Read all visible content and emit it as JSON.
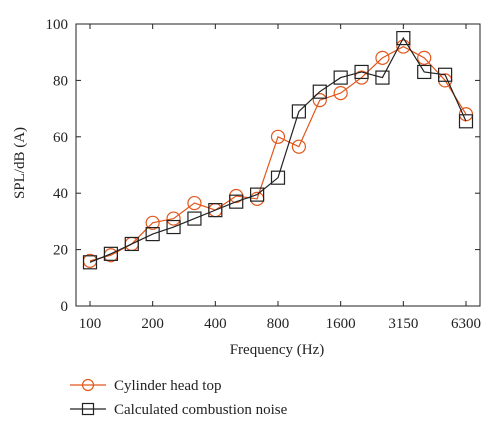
{
  "chart_data": {
    "type": "line",
    "xlabel": "Frequency (Hz)",
    "ylabel": "SPL/dB (A)",
    "ylim": [
      0,
      100
    ],
    "y_ticks": [
      0,
      20,
      40,
      60,
      80,
      100
    ],
    "x_ticks": [
      "100",
      "200",
      "400",
      "800",
      "1600",
      "3150",
      "6300"
    ],
    "x_scale": "log",
    "grid": false,
    "legend_position": "bottom-left, below plot",
    "categories": [
      "100",
      "125",
      "160",
      "200",
      "250",
      "315",
      "400",
      "500",
      "630",
      "800",
      "1000",
      "1250",
      "1600",
      "2000",
      "2500",
      "3150",
      "4000",
      "5000",
      "6300"
    ],
    "series": [
      {
        "name": "Cylinder head top",
        "color": "#e2571c",
        "marker": "circle",
        "values": [
          16,
          18,
          22,
          29.5,
          31,
          36.5,
          34,
          39,
          38,
          60,
          56.5,
          73,
          75.5,
          81,
          88,
          92,
          88,
          80,
          68
        ]
      },
      {
        "name": "Calculated combustion noise",
        "color": "#222222",
        "marker": "square",
        "values": [
          15.5,
          18.5,
          22,
          25.5,
          28,
          31,
          34,
          37,
          39.5,
          45.5,
          69,
          76,
          81,
          83,
          81,
          95,
          83,
          82,
          65.5
        ]
      }
    ]
  }
}
